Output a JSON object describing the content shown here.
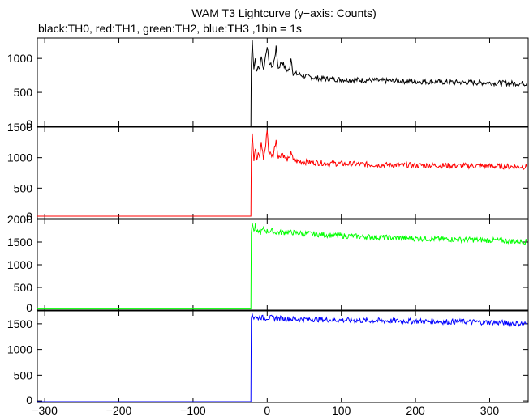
{
  "title": "WAM T3 Lightcurve (y−axis: Counts)",
  "subtitle": "black:TH0, red:TH1, green:TH2, blue:TH3 ,1bin = 1s",
  "chart_data": {
    "type": "line",
    "x_ticks": [
      -300,
      -200,
      -100,
      0,
      100,
      200,
      300
    ],
    "xlim": [
      -310,
      352
    ],
    "panels": [
      {
        "name": "TH0",
        "color": "#000000",
        "ylim": [
          0,
          1300
        ],
        "y_ticks": [
          0,
          500,
          1000
        ],
        "y_tick_labels": [
          "0",
          "500",
          "1000"
        ],
        "x": [
          -310,
          -22,
          -21.5,
          -20,
          -18,
          -16,
          -14,
          -12,
          -10,
          -8,
          -5,
          -2,
          0,
          2,
          5,
          8,
          12,
          15,
          20,
          25,
          30,
          32,
          35,
          40,
          50,
          60,
          80,
          100,
          130,
          160,
          200,
          250,
          300,
          350
        ],
        "y": [
          0,
          0,
          900,
          1260,
          860,
          1000,
          780,
          900,
          830,
          1060,
          830,
          1050,
          1200,
          960,
          900,
          880,
          1150,
          850,
          960,
          830,
          820,
          1020,
          780,
          770,
          740,
          720,
          700,
          690,
          680,
          670,
          660,
          650,
          640,
          630
        ]
      },
      {
        "name": "TH1",
        "color": "#ff0000",
        "ylim": [
          0,
          1500
        ],
        "y_ticks": [
          0,
          500,
          1000,
          1500
        ],
        "y_tick_labels": [
          "0",
          "500",
          "1000",
          "1500"
        ],
        "x": [
          -310,
          -22,
          -21.5,
          -20,
          -18,
          -16,
          -14,
          -12,
          -10,
          -8,
          -5,
          -2,
          0,
          2,
          5,
          8,
          12,
          15,
          20,
          25,
          30,
          32,
          35,
          40,
          50,
          60,
          80,
          100,
          130,
          160,
          200,
          250,
          300,
          350
        ],
        "y": [
          40,
          40,
          1000,
          1430,
          980,
          1160,
          960,
          1050,
          1010,
          1260,
          990,
          1200,
          1480,
          1100,
          1050,
          1030,
          1300,
          990,
          1080,
          980,
          970,
          1120,
          950,
          940,
          930,
          920,
          910,
          900,
          890,
          880,
          875,
          870,
          860,
          850
        ]
      },
      {
        "name": "TH2",
        "color": "#00ff00",
        "ylim": [
          0,
          2000
        ],
        "y_ticks": [
          0,
          500,
          1000,
          1500,
          2000
        ],
        "y_tick_labels": [
          "0",
          "500",
          "1000",
          "1500",
          "2000"
        ],
        "x": [
          -310,
          -22,
          -21.5,
          -20,
          -18,
          -16,
          -14,
          -12,
          -10,
          -5,
          0,
          5,
          10,
          20,
          30,
          40,
          60,
          80,
          100,
          130,
          160,
          200,
          250,
          300,
          350
        ],
        "y": [
          25,
          25,
          1700,
          1950,
          1720,
          1850,
          1680,
          1760,
          1700,
          1780,
          1740,
          1750,
          1720,
          1710,
          1720,
          1700,
          1680,
          1660,
          1640,
          1620,
          1600,
          1580,
          1560,
          1540,
          1510
        ]
      },
      {
        "name": "TH3",
        "color": "#0000ff",
        "ylim": [
          -30,
          1750
        ],
        "y_ticks": [
          0,
          500,
          1000,
          1500
        ],
        "y_tick_labels": [
          "0",
          "500",
          "1000",
          "1500"
        ],
        "x": [
          -310,
          -22,
          -21.5,
          -20,
          -18,
          -16,
          -14,
          -10,
          -5,
          0,
          10,
          20,
          40,
          60,
          80,
          100,
          150,
          200,
          250,
          300,
          350
        ],
        "y": [
          -15,
          -15,
          1600,
          1700,
          1620,
          1660,
          1600,
          1640,
          1610,
          1620,
          1610,
          1600,
          1590,
          1590,
          1580,
          1570,
          1560,
          1550,
          1540,
          1530,
          1500
        ]
      }
    ]
  }
}
